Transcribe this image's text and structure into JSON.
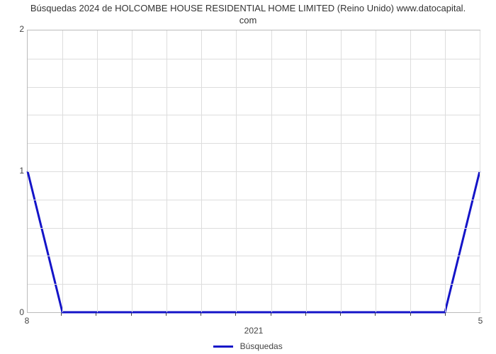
{
  "title_line1": "Búsquedas 2024 de HOLCOMBE HOUSE RESIDENTIAL HOME LIMITED (Reino Unido) www.datocapital.",
  "title_line2": "com",
  "chart": {
    "type": "line",
    "background_color": "#ffffff",
    "grid_color": "#dddddd",
    "border_color": "#bbbbbb",
    "text_color": "#444444",
    "title_fontsize": 13,
    "tick_fontsize": 12,
    "y_ticks": [
      0,
      1,
      2
    ],
    "ylim": [
      0,
      2
    ],
    "x_count": 14,
    "x_tick_left": "8",
    "x_tick_right": "5",
    "x_center_label": "2021",
    "series": {
      "name": "Búsquedas",
      "color": "#1414c8",
      "line_width": 3,
      "values": [
        1,
        0,
        0,
        0,
        0,
        0,
        0,
        0,
        0,
        0,
        0,
        0,
        0,
        1
      ]
    }
  },
  "legend_label": "Búsquedas"
}
